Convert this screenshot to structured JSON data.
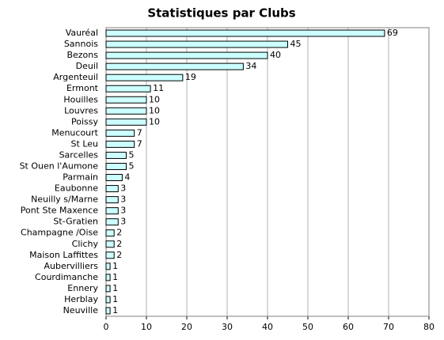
{
  "chart_data": {
    "type": "bar",
    "orientation": "horizontal",
    "title": "Statistiques par Clubs",
    "categories": [
      "Vauréal",
      "Sannois",
      "Bezons",
      "Deuil",
      "Argenteuil",
      "Ermont",
      "Houilles",
      "Louvres",
      "Poissy",
      "Menucourt",
      "St Leu",
      "Sarcelles",
      "St Ouen l'Aumone",
      "Parmain",
      "Eaubonne",
      "Neuilly s/Marne",
      "Pont Ste Maxence",
      "St-Gratien",
      "Champagne /Oise",
      "Clichy",
      "Maison Laffittes",
      "Aubervilliers",
      "Courdimanche",
      "Ennery",
      "Herblay",
      "Neuville"
    ],
    "values": [
      69,
      45,
      40,
      34,
      19,
      11,
      10,
      10,
      10,
      7,
      7,
      5,
      5,
      4,
      3,
      3,
      3,
      3,
      2,
      2,
      2,
      1,
      1,
      1,
      1,
      1
    ],
    "color": "#ccffff",
    "xlim": [
      0,
      80
    ],
    "xticks": [
      0,
      10,
      20,
      30,
      40,
      50,
      60,
      70,
      80
    ],
    "grid": true
  }
}
